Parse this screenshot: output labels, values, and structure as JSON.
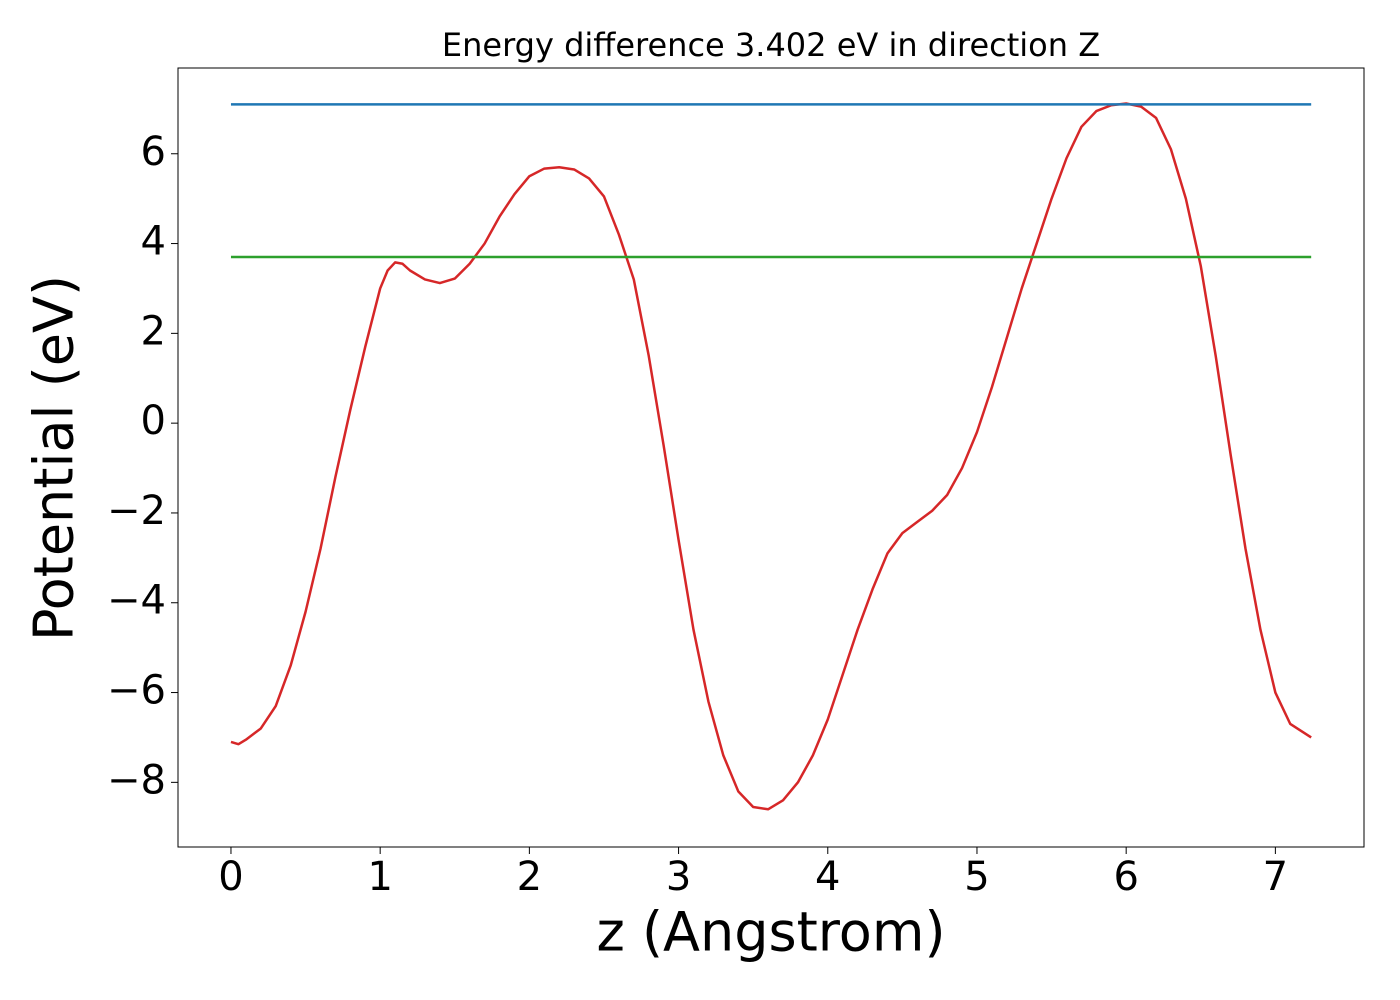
{
  "chart_data": {
    "type": "line",
    "title": "Energy difference 3.402 eV in direction Z",
    "xlabel": "z (Angstrom)",
    "ylabel": "Potential (eV)",
    "xlim": [
      -0.355,
      7.594
    ],
    "ylim": [
      -9.44,
      7.91
    ],
    "xticks": [
      0,
      1,
      2,
      3,
      4,
      5,
      6,
      7
    ],
    "yticks": [
      {
        "value": -8,
        "label": "−8"
      },
      {
        "value": -6,
        "label": "−6"
      },
      {
        "value": -4,
        "label": "−4"
      },
      {
        "value": -2,
        "label": "−2"
      },
      0,
      2,
      4,
      6
    ],
    "series": [
      {
        "color": "#d62728",
        "x": [
          0,
          0.05,
          0.1,
          0.2,
          0.3,
          0.4,
          0.5,
          0.6,
          0.7,
          0.8,
          0.9,
          1.0,
          1.05,
          1.1,
          1.15,
          1.2,
          1.3,
          1.4,
          1.5,
          1.6,
          1.7,
          1.8,
          1.9,
          2.0,
          2.1,
          2.2,
          2.3,
          2.4,
          2.5,
          2.6,
          2.7,
          2.8,
          2.9,
          3.0,
          3.1,
          3.2,
          3.3,
          3.4,
          3.5,
          3.6,
          3.7,
          3.8,
          3.9,
          4.0,
          4.1,
          4.2,
          4.3,
          4.4,
          4.5,
          4.6,
          4.7,
          4.8,
          4.9,
          5.0,
          5.1,
          5.2,
          5.3,
          5.4,
          5.5,
          5.6,
          5.7,
          5.8,
          5.9,
          6.0,
          6.1,
          6.2,
          6.3,
          6.4,
          6.5,
          6.6,
          6.7,
          6.8,
          6.9,
          7.0,
          7.1,
          7.24
        ],
        "values": [
          -7.1,
          -7.15,
          -7.05,
          -6.8,
          -6.3,
          -5.4,
          -4.2,
          -2.8,
          -1.2,
          0.3,
          1.7,
          3.0,
          3.4,
          3.58,
          3.55,
          3.4,
          3.2,
          3.12,
          3.22,
          3.55,
          4.0,
          4.6,
          5.1,
          5.5,
          5.67,
          5.7,
          5.65,
          5.45,
          5.05,
          4.2,
          3.2,
          1.5,
          -0.5,
          -2.6,
          -4.6,
          -6.2,
          -7.4,
          -8.2,
          -8.55,
          -8.6,
          -8.4,
          -8.0,
          -7.4,
          -6.6,
          -5.6,
          -4.6,
          -3.7,
          -2.9,
          -2.45,
          -2.2,
          -1.95,
          -1.6,
          -1.0,
          -0.2,
          0.8,
          1.9,
          3.0,
          4.0,
          5.0,
          5.9,
          6.6,
          6.95,
          7.08,
          7.12,
          7.05,
          6.8,
          6.1,
          5.0,
          3.5,
          1.5,
          -0.7,
          -2.8,
          -4.6,
          -6.0,
          -6.7,
          -7.0
        ]
      },
      {
        "color": "#1f77b4",
        "x": [
          0,
          7.24
        ],
        "values": [
          7.1,
          7.1
        ]
      },
      {
        "color": "#2ca02c",
        "x": [
          0,
          7.24
        ],
        "values": [
          3.7,
          3.7
        ]
      }
    ]
  }
}
